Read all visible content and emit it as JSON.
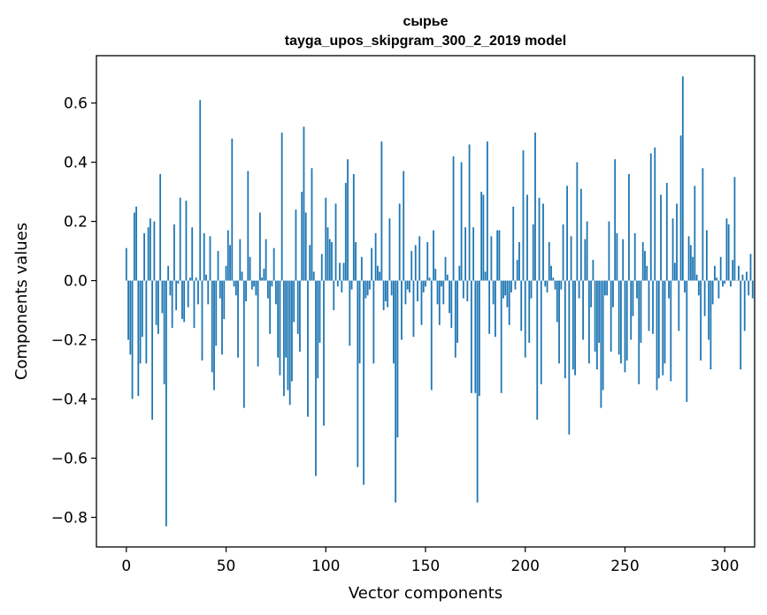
{
  "chart_data": {
    "type": "bar",
    "title_line1": "сырье",
    "title_line2": "tayga_upos_skipgram_300_2_2019 model",
    "xlabel": "Vector components",
    "ylabel": "Components values",
    "xlim": [
      -15,
      315
    ],
    "ylim": [
      -0.9,
      0.76
    ],
    "xticks": [
      0,
      50,
      100,
      150,
      200,
      250,
      300
    ],
    "xtick_labels": [
      "0",
      "50",
      "100",
      "150",
      "200",
      "250",
      "300"
    ],
    "yticks": [
      -0.8,
      -0.6,
      -0.4,
      -0.2,
      0.0,
      0.2,
      0.4,
      0.6
    ],
    "ytick_labels": [
      "−0.8",
      "−0.6",
      "−0.4",
      "−0.2",
      "0.0",
      "0.2",
      "0.4",
      "0.6"
    ],
    "bar_color": "#1f77b4",
    "grid": false,
    "values": [
      0.11,
      -0.2,
      -0.25,
      -0.4,
      0.23,
      0.25,
      -0.39,
      -0.28,
      -0.19,
      0.16,
      -0.28,
      0.18,
      0.21,
      -0.47,
      0.2,
      -0.15,
      -0.18,
      0.36,
      -0.11,
      -0.35,
      -0.83,
      0.05,
      -0.05,
      -0.16,
      0.19,
      -0.1,
      -0.01,
      0.28,
      -0.13,
      -0.14,
      0.27,
      -0.09,
      0.01,
      0.18,
      -0.16,
      0.01,
      -0.08,
      0.61,
      -0.27,
      0.16,
      0.02,
      -0.08,
      0.15,
      -0.31,
      -0.37,
      -0.22,
      0.1,
      -0.06,
      -0.25,
      -0.13,
      0.05,
      0.17,
      0.12,
      0.48,
      -0.02,
      -0.05,
      -0.26,
      0.14,
      0.03,
      -0.43,
      -0.07,
      0.37,
      0.08,
      -0.03,
      -0.02,
      -0.05,
      -0.29,
      0.23,
      0.01,
      0.04,
      0.14,
      -0.06,
      -0.18,
      -0.02,
      0.11,
      -0.08,
      -0.26,
      -0.32,
      0.5,
      -0.39,
      -0.26,
      -0.37,
      -0.42,
      -0.34,
      -0.14,
      0.24,
      -0.18,
      -0.24,
      0.3,
      0.52,
      0.23,
      -0.46,
      0.12,
      0.38,
      0.03,
      -0.66,
      -0.33,
      -0.21,
      0.09,
      -0.49,
      0.28,
      0.18,
      0.14,
      0.13,
      -0.1,
      0.26,
      -0.02,
      0.06,
      -0.04,
      0.06,
      0.33,
      0.41,
      -0.22,
      -0.03,
      0.36,
      0.13,
      -0.63,
      -0.28,
      0.08,
      -0.69,
      -0.06,
      -0.05,
      -0.03,
      0.11,
      -0.28,
      0.16,
      0.05,
      0.03,
      0.47,
      -0.1,
      -0.07,
      -0.09,
      0.21,
      -0.05,
      -0.28,
      -0.75,
      -0.53,
      0.26,
      -0.2,
      0.37,
      -0.08,
      -0.03,
      -0.04,
      0.1,
      -0.19,
      0.12,
      -0.07,
      0.15,
      -0.15,
      -0.04,
      -0.02,
      0.13,
      0.01,
      -0.37,
      0.17,
      0.04,
      -0.08,
      -0.15,
      -0.02,
      -0.08,
      0.08,
      0.02,
      -0.11,
      -0.16,
      0.42,
      -0.26,
      -0.21,
      0.05,
      0.4,
      -0.06,
      0.18,
      -0.07,
      0.46,
      -0.38,
      0.18,
      -0.38,
      -0.75,
      -0.39,
      0.3,
      0.29,
      0.03,
      0.47,
      -0.18,
      0.15,
      -0.08,
      -0.19,
      0.17,
      0.17,
      -0.38,
      -0.06,
      -0.05,
      -0.09,
      -0.15,
      -0.04,
      0.25,
      -0.03,
      0.07,
      0.13,
      -0.17,
      0.44,
      -0.26,
      0.29,
      -0.21,
      -0.06,
      0.19,
      0.5,
      -0.47,
      0.28,
      -0.35,
      0.26,
      -0.02,
      -0.04,
      0.13,
      0.05,
      0.01,
      -0.03,
      -0.14,
      -0.28,
      -0.03,
      0.19,
      -0.33,
      0.32,
      -0.52,
      0.15,
      -0.3,
      -0.32,
      0.4,
      -0.06,
      0.31,
      -0.2,
      0.14,
      0.2,
      -0.28,
      -0.09,
      0.07,
      -0.24,
      -0.3,
      -0.21,
      -0.43,
      -0.37,
      -0.05,
      -0.05,
      0.2,
      -0.24,
      -0.09,
      0.41,
      0.16,
      -0.25,
      -0.28,
      0.14,
      -0.31,
      -0.27,
      0.36,
      -0.2,
      -0.12,
      0.16,
      -0.06,
      -0.35,
      -0.21,
      0.13,
      0.1,
      0.05,
      -0.17,
      0.43,
      -0.18,
      0.45,
      -0.37,
      -0.33,
      0.29,
      -0.32,
      -0.28,
      0.33,
      -0.06,
      -0.34,
      0.21,
      0.06,
      0.26,
      -0.17,
      0.49,
      0.69,
      -0.04,
      -0.41,
      0.15,
      0.12,
      0.08,
      0.32,
      0.02,
      -0.05,
      -0.27,
      0.38,
      -0.12,
      0.17,
      -0.2,
      -0.3,
      -0.08,
      0.05,
      0.01,
      -0.06,
      0.08,
      -0.02,
      -0.01,
      0.21,
      0.19,
      -0.02,
      0.07,
      0.35,
      0.0,
      0.05,
      -0.3,
      0.02,
      -0.17,
      0.03,
      -0.05,
      0.09,
      -0.06
    ]
  }
}
